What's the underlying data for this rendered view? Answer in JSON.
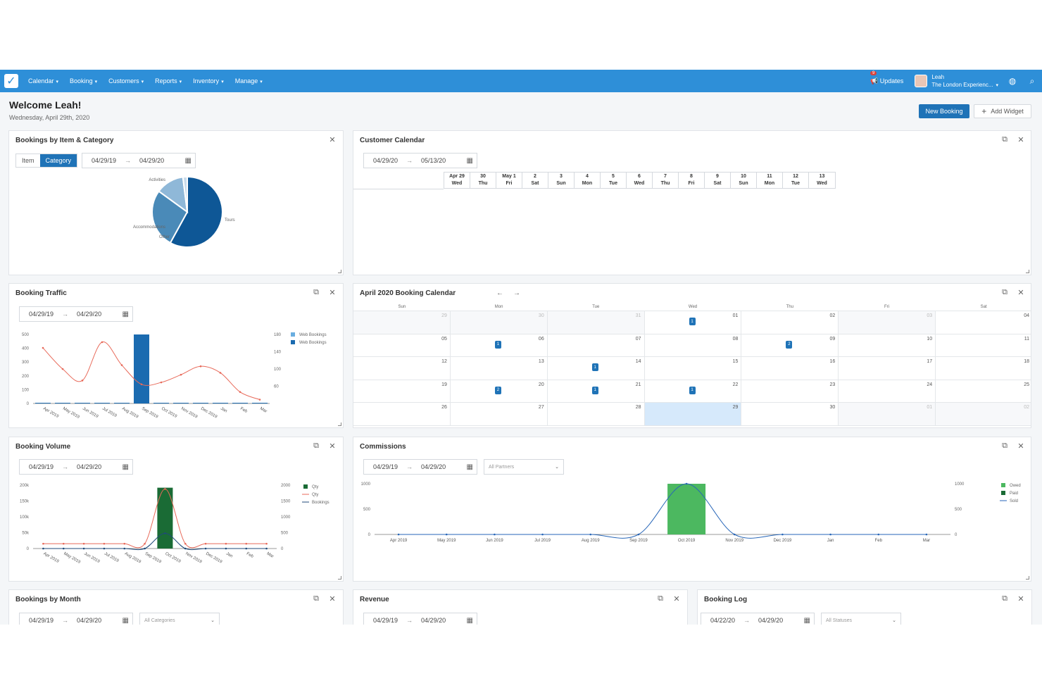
{
  "topbar": {
    "nav": [
      {
        "label": "Calendar"
      },
      {
        "label": "Booking"
      },
      {
        "label": "Customers"
      },
      {
        "label": "Reports"
      },
      {
        "label": "Inventory"
      },
      {
        "label": "Manage"
      }
    ],
    "updates_count": "9",
    "updates_label": "Updates",
    "user_name": "Leah",
    "user_company": "The London Experienc...",
    "icons": [
      "checkmark-logo-icon",
      "megaphone-icon",
      "help-icon",
      "search-icon"
    ]
  },
  "header": {
    "welcome": "Welcome Leah!",
    "date": "Wednesday, April 29th, 2020",
    "new_booking": "New Booking",
    "add_widget": "Add Widget"
  },
  "widgets": {
    "item_category": {
      "title": "Bookings by Item & Category",
      "toggle_item": "Item",
      "toggle_category": "Category",
      "date_from": "04/29/19",
      "date_to": "04/29/20"
    },
    "customer_calendar": {
      "title": "Customer Calendar",
      "date_from": "04/29/20",
      "date_to": "05/13/20",
      "days": [
        {
          "d": "Apr 29",
          "w": "Wed"
        },
        {
          "d": "30",
          "w": "Thu"
        },
        {
          "d": "May 1",
          "w": "Fri"
        },
        {
          "d": "2",
          "w": "Sat"
        },
        {
          "d": "3",
          "w": "Sun"
        },
        {
          "d": "4",
          "w": "Mon"
        },
        {
          "d": "5",
          "w": "Tue"
        },
        {
          "d": "6",
          "w": "Wed"
        },
        {
          "d": "7",
          "w": "Thu"
        },
        {
          "d": "8",
          "w": "Fri"
        },
        {
          "d": "9",
          "w": "Sat"
        },
        {
          "d": "10",
          "w": "Sun"
        },
        {
          "d": "11",
          "w": "Mon"
        },
        {
          "d": "12",
          "w": "Tue"
        },
        {
          "d": "13",
          "w": "Wed"
        }
      ]
    },
    "booking_traffic": {
      "title": "Booking Traffic",
      "date_from": "04/29/19",
      "date_to": "04/29/20"
    },
    "april_calendar": {
      "title": "April 2020 Booking Calendar",
      "weekdays": [
        "Sun",
        "Mon",
        "Tue",
        "Wed",
        "Thu",
        "Fri",
        "Sat"
      ],
      "weeks": [
        [
          {
            "n": "29",
            "m": true
          },
          {
            "n": "30",
            "m": true
          },
          {
            "n": "31",
            "m": true
          },
          {
            "n": "01",
            "e": "1"
          },
          {
            "n": "02"
          },
          {
            "n": "03",
            "m": true
          },
          {
            "n": "04"
          }
        ],
        [
          {
            "n": "05"
          },
          {
            "n": "06",
            "e": "1"
          },
          {
            "n": "07"
          },
          {
            "n": "08"
          },
          {
            "n": "09",
            "e": "2"
          },
          {
            "n": "10"
          },
          {
            "n": "11"
          }
        ],
        [
          {
            "n": "12"
          },
          {
            "n": "13"
          },
          {
            "n": "14",
            "e": "1"
          },
          {
            "n": "15"
          },
          {
            "n": "16"
          },
          {
            "n": "17"
          },
          {
            "n": "18"
          }
        ],
        [
          {
            "n": "19"
          },
          {
            "n": "20",
            "e": "2"
          },
          {
            "n": "21",
            "e": "1"
          },
          {
            "n": "22",
            "e": "1"
          },
          {
            "n": "23"
          },
          {
            "n": "24"
          },
          {
            "n": "25"
          }
        ],
        [
          {
            "n": "26"
          },
          {
            "n": "27"
          },
          {
            "n": "28"
          },
          {
            "n": "29",
            "t": true
          },
          {
            "n": "30"
          },
          {
            "n": "01",
            "m": true
          },
          {
            "n": "02",
            "m": true
          }
        ]
      ]
    },
    "booking_volume": {
      "title": "Booking Volume",
      "date_from": "04/29/19",
      "date_to": "04/29/20"
    },
    "commissions": {
      "title": "Commissions",
      "date_from": "04/29/19",
      "date_to": "04/29/20",
      "select": "All Partners"
    },
    "bookings_month": {
      "title": "Bookings by Month",
      "date_from": "04/29/19",
      "date_to": "04/29/20",
      "select": "All Categories"
    },
    "revenue": {
      "title": "Revenue",
      "date_from": "04/29/19",
      "date_to": "04/29/20"
    },
    "booking_log": {
      "title": "Booking Log",
      "date_from": "04/22/20",
      "date_to": "04/29/20",
      "select": "All Statuses"
    }
  },
  "chart_data": [
    {
      "type": "pie",
      "categories": [
        "Tours",
        "Activities",
        "Accommodations",
        "Other"
      ],
      "values": [
        58,
        27,
        13,
        2
      ],
      "colors": [
        "#0e5796",
        "#4a8ab8",
        "#8fb8d8",
        "#c9dcec"
      ]
    },
    {
      "type": "bar",
      "categories": [
        "Apr 2019",
        "May 2019",
        "Jun 2019",
        "Jul 2019",
        "Aug 2019",
        "Sep 2019",
        "Oct 2019",
        "Nov 2019",
        "Dec 2019",
        "Jan",
        "Feb",
        "Mar"
      ],
      "series": [
        {
          "name": "Web Bookings",
          "kind": "bar",
          "values": [
            0,
            0,
            0,
            0,
            0,
            0,
            0,
            0,
            0,
            0,
            0,
            0
          ],
          "color": "#6aaee0"
        },
        {
          "name": "Web Bookings",
          "kind": "bar",
          "values": [
            5,
            5,
            5,
            5,
            5,
            500,
            5,
            5,
            5,
            5,
            5,
            5
          ],
          "color": "#1b6bb0"
        },
        {
          "name": "",
          "kind": "line",
          "axis": "right",
          "values": [
            145,
            90,
            60,
            160,
            100,
            50,
            55,
            75,
            97,
            80,
            30,
            10
          ],
          "color": "#e86a5a"
        }
      ],
      "legend": "top-right",
      "yticks": [
        "500",
        "400",
        "300",
        "200",
        "100",
        "0"
      ],
      "y2ticks": [
        "180",
        "140",
        "100",
        "60",
        ""
      ],
      "ylim": [
        0,
        500
      ],
      "y2lim": [
        0,
        180
      ]
    },
    {
      "type": "bar",
      "categories": [
        "Apr 2019",
        "May 2019",
        "Jun 2019",
        "Jul 2019",
        "Aug 2019",
        "Sep 2019",
        "Oct 2019",
        "Nov 2019",
        "Dec 2019",
        "Jan",
        "Feb",
        "Mar"
      ],
      "series": [
        {
          "name": "Qty",
          "kind": "bar",
          "values": [
            0,
            0,
            0,
            0,
            0,
            0,
            2400,
            0,
            0,
            0,
            0,
            0
          ],
          "color": "#1a6b35"
        },
        {
          "name": "Qty",
          "kind": "line",
          "values": [
            190,
            190,
            190,
            190,
            190,
            190,
            2350,
            190,
            190,
            190,
            190,
            190
          ],
          "color": "#e86a5a"
        },
        {
          "name": "Bookings",
          "kind": "line",
          "values": [
            0,
            0,
            0,
            0,
            0,
            0,
            600,
            0,
            0,
            0,
            0,
            0
          ],
          "color": "#1f4a7a"
        }
      ],
      "legend": "top-right",
      "yticks": [
        "200k",
        "150k",
        "100k",
        "50k",
        "0"
      ],
      "y2ticks": [
        "2000",
        "1500",
        "1000",
        "500",
        "0"
      ],
      "ylim": [
        0,
        2500
      ]
    },
    {
      "type": "bar",
      "categories": [
        "Apr 2019",
        "May 2019",
        "Jun 2019",
        "Jul 2019",
        "Aug 2019",
        "Sep 2019",
        "Oct 2019",
        "Nov 2019",
        "Dec 2019",
        "Jan",
        "Feb",
        "Mar"
      ],
      "series": [
        {
          "name": "Owed",
          "kind": "bar",
          "values": [
            0,
            0,
            0,
            0,
            0,
            0,
            1000,
            0,
            0,
            0,
            0,
            0
          ],
          "color": "#4cb860"
        },
        {
          "name": "Paid",
          "kind": "bar",
          "values": [
            0,
            0,
            0,
            0,
            0,
            0,
            0,
            0,
            0,
            0,
            0,
            0
          ],
          "color": "#1a6b35"
        },
        {
          "name": "Sold",
          "kind": "line",
          "values": [
            0,
            0,
            0,
            0,
            0,
            0,
            1000,
            0,
            0,
            0,
            0,
            0
          ],
          "color": "#2766b8"
        }
      ],
      "legend": "top-right",
      "yticks": [
        "1000",
        "500",
        "0"
      ],
      "y2ticks": [
        "1000",
        "500",
        "0"
      ],
      "ylim": [
        0,
        1000
      ]
    }
  ]
}
